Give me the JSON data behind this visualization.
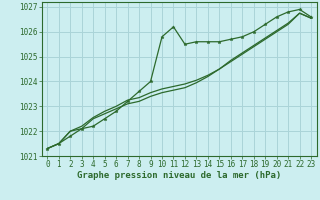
{
  "title": "Graphe pression niveau de la mer (hPa)",
  "bg_color": "#cceef0",
  "grid_color": "#aad4d8",
  "line_color": "#2d6a2d",
  "xlim": [
    -0.5,
    23.5
  ],
  "ylim": [
    1021,
    1027.2
  ],
  "xticks": [
    0,
    1,
    2,
    3,
    4,
    5,
    6,
    7,
    8,
    9,
    10,
    11,
    12,
    13,
    14,
    15,
    16,
    17,
    18,
    19,
    20,
    21,
    22,
    23
  ],
  "yticks": [
    1021,
    1022,
    1023,
    1024,
    1025,
    1026,
    1027
  ],
  "series_marked": [
    1021.3,
    1021.5,
    1021.8,
    1022.1,
    1022.2,
    1022.5,
    1022.8,
    1023.2,
    1023.6,
    1024.0,
    1025.8,
    1026.2,
    1025.5,
    1025.6,
    1025.6,
    1025.6,
    1025.7,
    1025.8,
    1026.0,
    1026.3,
    1026.6,
    1026.8,
    1026.9,
    1026.6
  ],
  "series_smooth1": [
    1021.3,
    1021.5,
    1022.0,
    1022.1,
    1022.5,
    1022.7,
    1022.9,
    1023.1,
    1023.2,
    1023.4,
    1023.55,
    1023.65,
    1023.75,
    1023.95,
    1024.2,
    1024.5,
    1024.85,
    1025.15,
    1025.45,
    1025.75,
    1026.05,
    1026.35,
    1026.75,
    1026.55
  ],
  "series_smooth2": [
    1021.3,
    1021.5,
    1022.0,
    1022.2,
    1022.55,
    1022.8,
    1023.0,
    1023.25,
    1023.35,
    1023.55,
    1023.7,
    1023.8,
    1023.9,
    1024.05,
    1024.25,
    1024.5,
    1024.8,
    1025.1,
    1025.4,
    1025.7,
    1026.0,
    1026.3,
    1026.75,
    1026.55
  ],
  "xlabel_fontsize": 6.5,
  "tick_fontsize": 5.5,
  "linewidth": 0.9,
  "marker_size": 2.5
}
